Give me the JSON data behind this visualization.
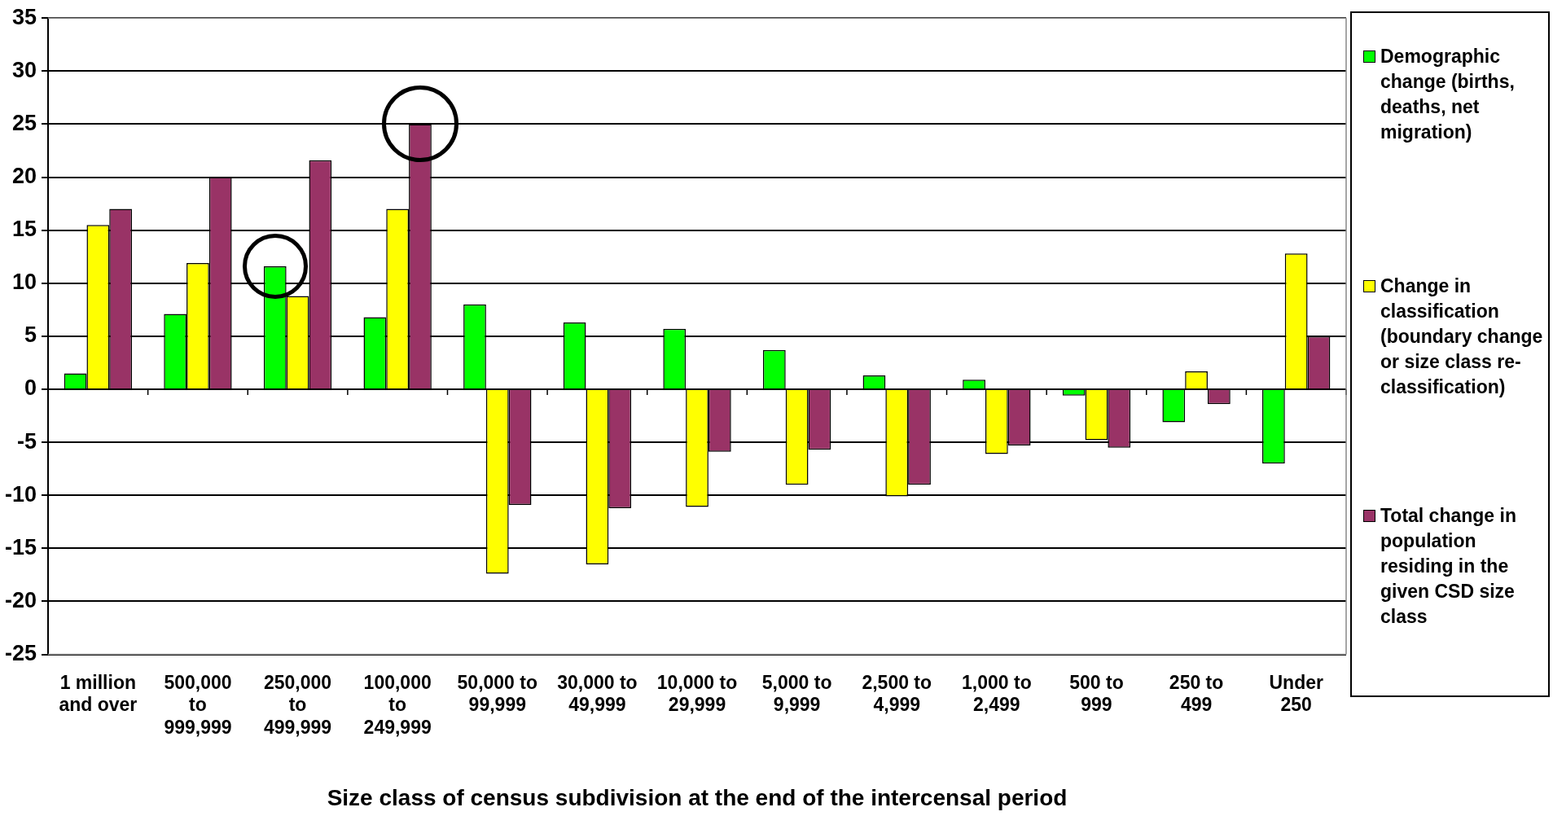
{
  "chart_data": {
    "type": "bar",
    "xlabel": "Size class of census subdivision at the end of the intercensal period",
    "categories": [
      "1 million and over",
      "500,000 to 999,999",
      "250,000 to 499,999",
      "100,000 to 249,999",
      "50,000 to 99,999",
      "30,000 to 49,999",
      "10,000 to 29,999",
      "5,000 to 9,999",
      "2,500 to 4,999",
      "1,000 to 2,499",
      "500 to 999",
      "250 to 499",
      "Under 250"
    ],
    "series": [
      {
        "name": "Demographic change (births, deaths, net migration)",
        "color": "#00ff00",
        "values": [
          1.5,
          7.1,
          11.6,
          6.8,
          8.0,
          6.3,
          5.7,
          3.7,
          1.3,
          0.9,
          -0.6,
          -3.1,
          -7.0
        ]
      },
      {
        "name": "Change in classification (boundary change or size class re-classification)",
        "color": "#ffff00",
        "values": [
          15.5,
          11.9,
          8.8,
          17.0,
          -17.4,
          -16.5,
          -11.1,
          -9.0,
          -10.1,
          -6.1,
          -4.8,
          1.7,
          12.8
        ]
      },
      {
        "name": "Total change in population residing in the given CSD size class",
        "color": "#993366",
        "values": [
          17.0,
          20.0,
          21.6,
          25.0,
          -10.9,
          -11.2,
          -5.9,
          -5.7,
          -9.0,
          -5.3,
          -5.5,
          -1.4,
          5.0
        ]
      }
    ],
    "ylim": [
      -25,
      35
    ],
    "yticks": [
      -25,
      -20,
      -15,
      -10,
      -5,
      0,
      5,
      10,
      15,
      20,
      25,
      30,
      35
    ],
    "grid": "y",
    "legend": "right"
  }
}
